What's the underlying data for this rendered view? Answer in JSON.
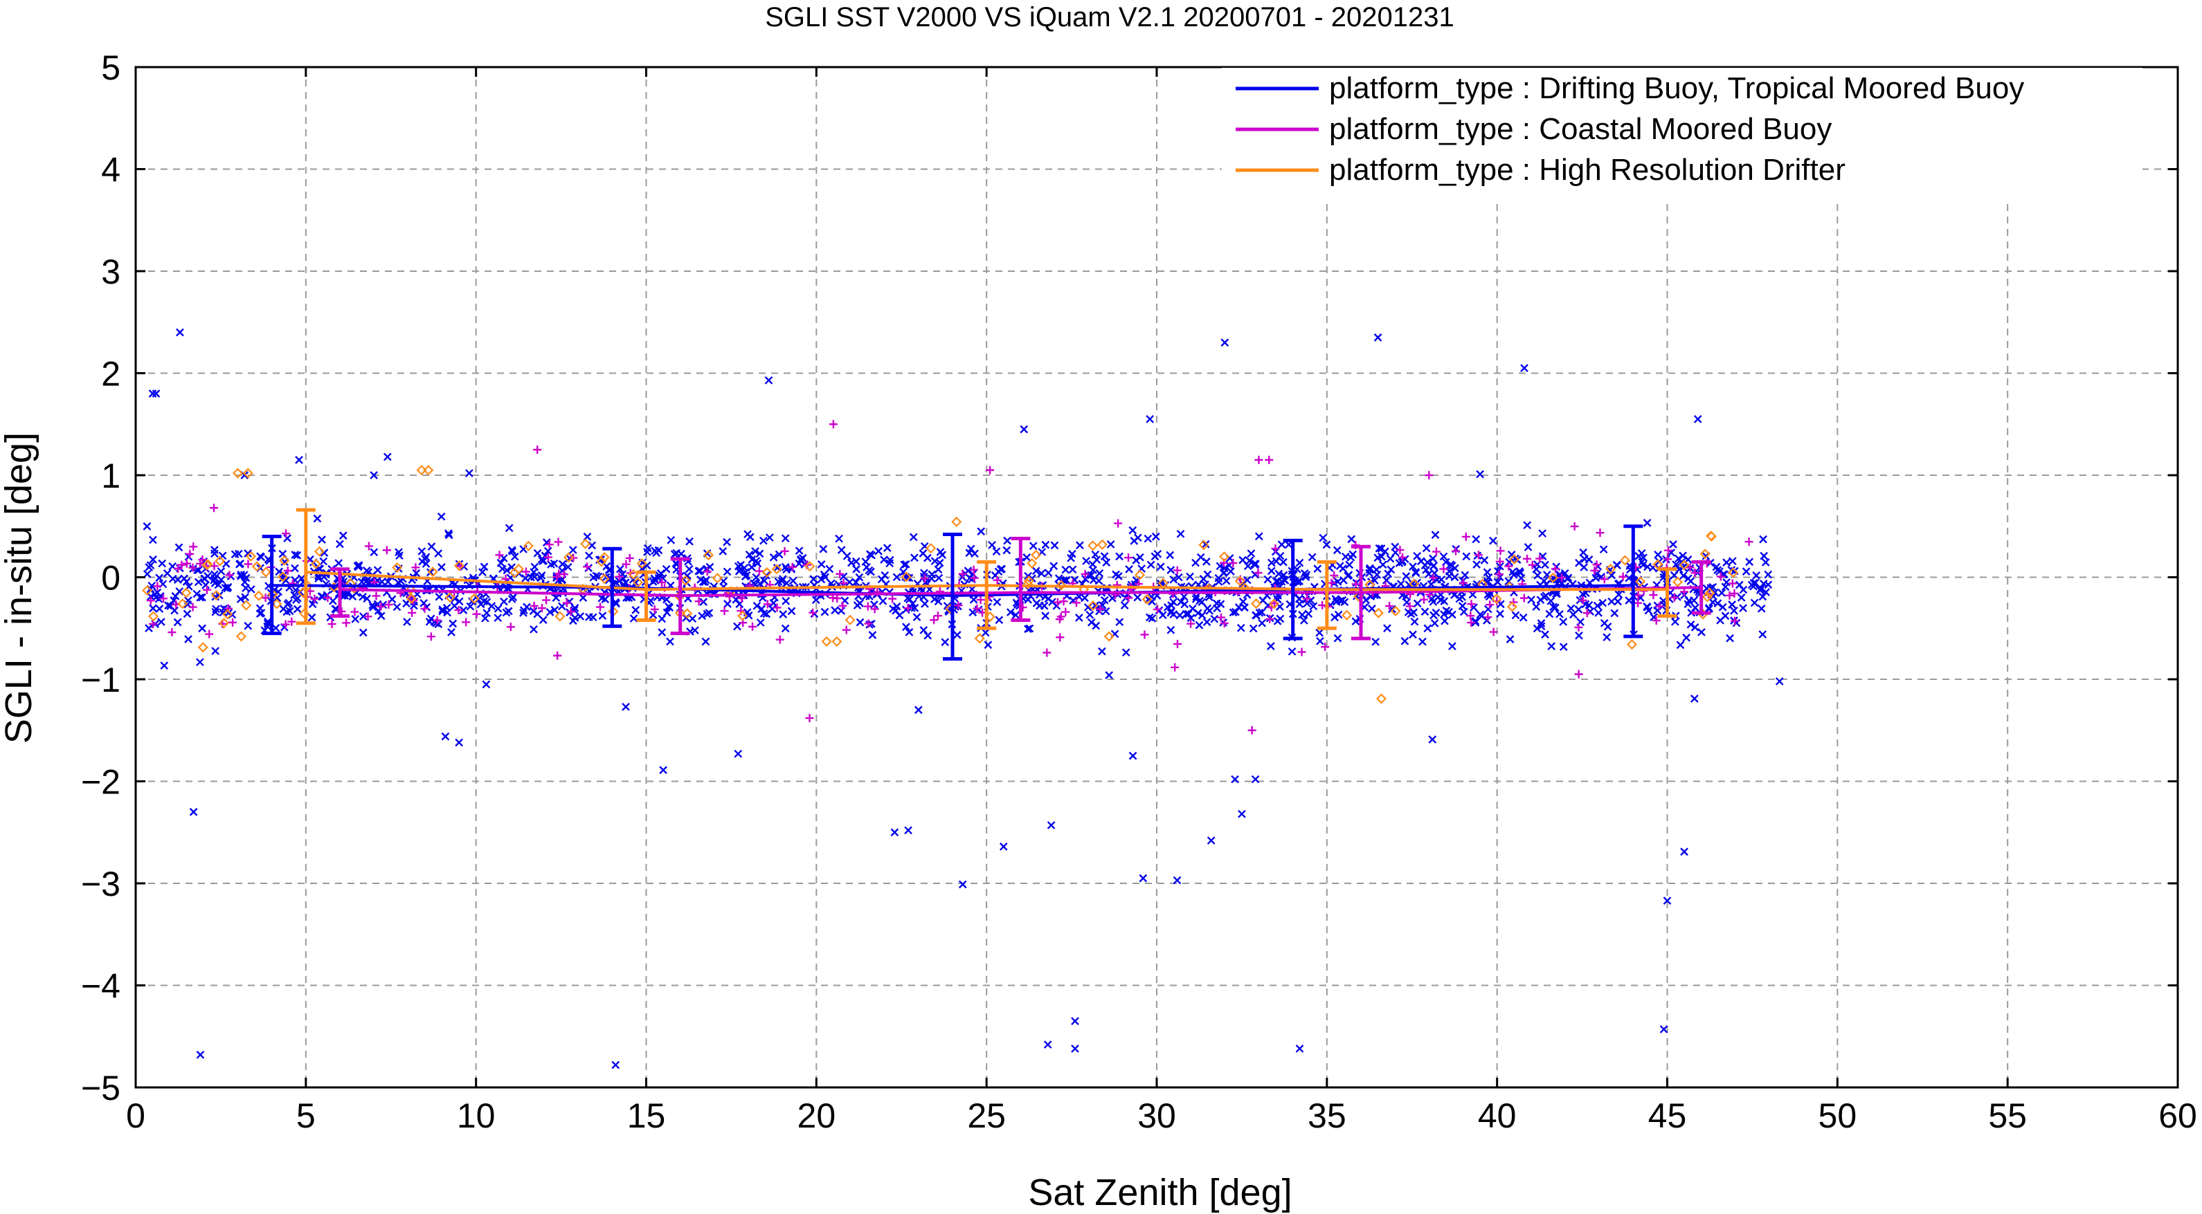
{
  "chart_data": {
    "type": "scatter",
    "title": "SGLI SST V2000 VS iQuam V2.1 20200701 - 20201231",
    "xlabel": "Sat Zenith [deg]",
    "ylabel": "SGLI - in-situ [deg]",
    "xlim": [
      0,
      60
    ],
    "ylim": [
      -5,
      5
    ],
    "xticks": [
      0,
      5,
      10,
      15,
      20,
      25,
      30,
      35,
      40,
      45,
      50,
      55,
      60
    ],
    "yticks": [
      -5,
      -4,
      -3,
      -2,
      -1,
      0,
      1,
      2,
      3,
      4,
      5
    ],
    "xtick_labels": [
      "0",
      "5",
      "10",
      "15",
      "20",
      "25",
      "30",
      "35",
      "40",
      "45",
      "50",
      "55",
      "60"
    ],
    "ytick_labels": [
      "−5",
      "−4",
      "−3",
      "−2",
      "−1",
      "0",
      "1",
      "2",
      "3",
      "4",
      "5"
    ],
    "grid": true,
    "legend_position": "top-right",
    "series": [
      {
        "name": "platform_type : Drifting Buoy, Tropical Moored Buoy",
        "color": "#0000ee",
        "marker": "x",
        "mean_line": {
          "x": [
            4,
            14,
            24,
            34,
            44
          ],
          "y": [
            -0.08,
            -0.1,
            -0.18,
            -0.12,
            -0.08
          ]
        },
        "error_bars": [
          {
            "x": 4,
            "mean": -0.08,
            "low": -0.55,
            "high": 0.4
          },
          {
            "x": 14,
            "mean": -0.1,
            "low": -0.48,
            "high": 0.28
          },
          {
            "x": 24,
            "mean": -0.18,
            "low": -0.8,
            "high": 0.42
          },
          {
            "x": 34,
            "mean": -0.12,
            "low": -0.6,
            "high": 0.36
          },
          {
            "x": 44,
            "mean": -0.08,
            "low": -0.58,
            "high": 0.5
          }
        ],
        "outliers": [
          {
            "x": 0.5,
            "y": 1.8
          },
          {
            "x": 0.6,
            "y": 1.8
          },
          {
            "x": 1.3,
            "y": 2.4
          },
          {
            "x": 1.7,
            "y": -2.3
          },
          {
            "x": 1.9,
            "y": -4.68
          },
          {
            "x": 3.2,
            "y": 1.0
          },
          {
            "x": 4.8,
            "y": 1.15
          },
          {
            "x": 7.0,
            "y": 1.0
          },
          {
            "x": 7.4,
            "y": 1.18
          },
          {
            "x": 9.1,
            "y": -1.56
          },
          {
            "x": 9.5,
            "y": -1.62
          },
          {
            "x": 9.8,
            "y": 1.02
          },
          {
            "x": 10.3,
            "y": -1.05
          },
          {
            "x": 14.1,
            "y": -4.78
          },
          {
            "x": 14.4,
            "y": -1.27
          },
          {
            "x": 15.5,
            "y": -1.89
          },
          {
            "x": 17.7,
            "y": -1.73
          },
          {
            "x": 18.6,
            "y": 1.93
          },
          {
            "x": 22.3,
            "y": -2.5
          },
          {
            "x": 22.7,
            "y": -2.48
          },
          {
            "x": 23.0,
            "y": -1.3
          },
          {
            "x": 24.3,
            "y": -3.01
          },
          {
            "x": 25.5,
            "y": -2.64
          },
          {
            "x": 26.1,
            "y": 1.45
          },
          {
            "x": 26.8,
            "y": -4.58
          },
          {
            "x": 26.9,
            "y": -2.43
          },
          {
            "x": 27.6,
            "y": -4.35
          },
          {
            "x": 27.6,
            "y": -4.62
          },
          {
            "x": 28.6,
            "y": -0.96
          },
          {
            "x": 29.3,
            "y": -1.75
          },
          {
            "x": 29.6,
            "y": -2.95
          },
          {
            "x": 29.8,
            "y": 1.55
          },
          {
            "x": 30.6,
            "y": -2.97
          },
          {
            "x": 31.6,
            "y": -2.58
          },
          {
            "x": 32.0,
            "y": 2.3
          },
          {
            "x": 32.3,
            "y": -1.98
          },
          {
            "x": 32.5,
            "y": -2.32
          },
          {
            "x": 32.9,
            "y": -1.98
          },
          {
            "x": 34.2,
            "y": -4.62
          },
          {
            "x": 36.5,
            "y": 2.35
          },
          {
            "x": 38.1,
            "y": -1.59
          },
          {
            "x": 39.5,
            "y": 1.01
          },
          {
            "x": 40.8,
            "y": 2.05
          },
          {
            "x": 44.9,
            "y": -4.43
          },
          {
            "x": 45.0,
            "y": -3.17
          },
          {
            "x": 45.5,
            "y": -2.69
          },
          {
            "x": 45.9,
            "y": 1.55
          },
          {
            "x": 45.8,
            "y": -1.19
          },
          {
            "x": 48.3,
            "y": -1.02
          }
        ]
      },
      {
        "name": "platform_type : Coastal Moored Buoy",
        "color": "#cc00cc",
        "marker": "+",
        "mean_line": {
          "x": [
            6,
            16,
            26,
            36,
            46
          ],
          "y": [
            -0.12,
            -0.18,
            -0.15,
            -0.15,
            -0.1
          ]
        },
        "error_bars": [
          {
            "x": 6,
            "mean": -0.12,
            "low": -0.38,
            "high": 0.08
          },
          {
            "x": 16,
            "mean": -0.18,
            "low": -0.55,
            "high": 0.18
          },
          {
            "x": 26,
            "mean": -0.15,
            "low": -0.42,
            "high": 0.38
          },
          {
            "x": 36,
            "mean": -0.15,
            "low": -0.6,
            "high": 0.3
          },
          {
            "x": 46,
            "mean": -0.1,
            "low": -0.35,
            "high": 0.15
          }
        ],
        "outliers": [
          {
            "x": 2.3,
            "y": 0.68
          },
          {
            "x": 11.8,
            "y": 1.25
          },
          {
            "x": 20.5,
            "y": 1.5
          },
          {
            "x": 19.8,
            "y": -1.38
          },
          {
            "x": 25.1,
            "y": 1.05
          },
          {
            "x": 32.8,
            "y": -1.5
          },
          {
            "x": 33.0,
            "y": 1.15
          },
          {
            "x": 33.3,
            "y": 1.15
          },
          {
            "x": 38.0,
            "y": 1.0
          },
          {
            "x": 42.4,
            "y": -0.95
          }
        ]
      },
      {
        "name": "platform_type : High Resolution Drifter",
        "color": "#ff8c1a",
        "marker": "diamond",
        "mean_line": {
          "x": [
            5,
            15,
            25,
            35,
            45
          ],
          "y": [
            0.05,
            -0.12,
            -0.08,
            -0.12,
            -0.12
          ]
        },
        "error_bars": [
          {
            "x": 5,
            "mean": 0.05,
            "low": -0.45,
            "high": 0.66
          },
          {
            "x": 15,
            "mean": -0.12,
            "low": -0.42,
            "high": 0.05
          },
          {
            "x": 25,
            "mean": -0.08,
            "low": -0.5,
            "high": 0.15
          },
          {
            "x": 35,
            "mean": -0.12,
            "low": -0.5,
            "high": 0.15
          },
          {
            "x": 45,
            "mean": -0.12,
            "low": -0.38,
            "high": 0.08
          }
        ],
        "outliers": [
          {
            "x": 3.0,
            "y": 1.02
          },
          {
            "x": 3.3,
            "y": 1.02
          },
          {
            "x": 3.1,
            "y": -0.58
          },
          {
            "x": 8.4,
            "y": 1.05
          },
          {
            "x": 8.6,
            "y": 1.05
          },
          {
            "x": 20.3,
            "y": -0.63
          },
          {
            "x": 20.6,
            "y": -0.63
          },
          {
            "x": 28.4,
            "y": 0.32
          },
          {
            "x": 28.6,
            "y": -0.58
          },
          {
            "x": 36.6,
            "y": -1.19
          },
          {
            "x": 46.3,
            "y": 0.4
          }
        ]
      }
    ]
  }
}
